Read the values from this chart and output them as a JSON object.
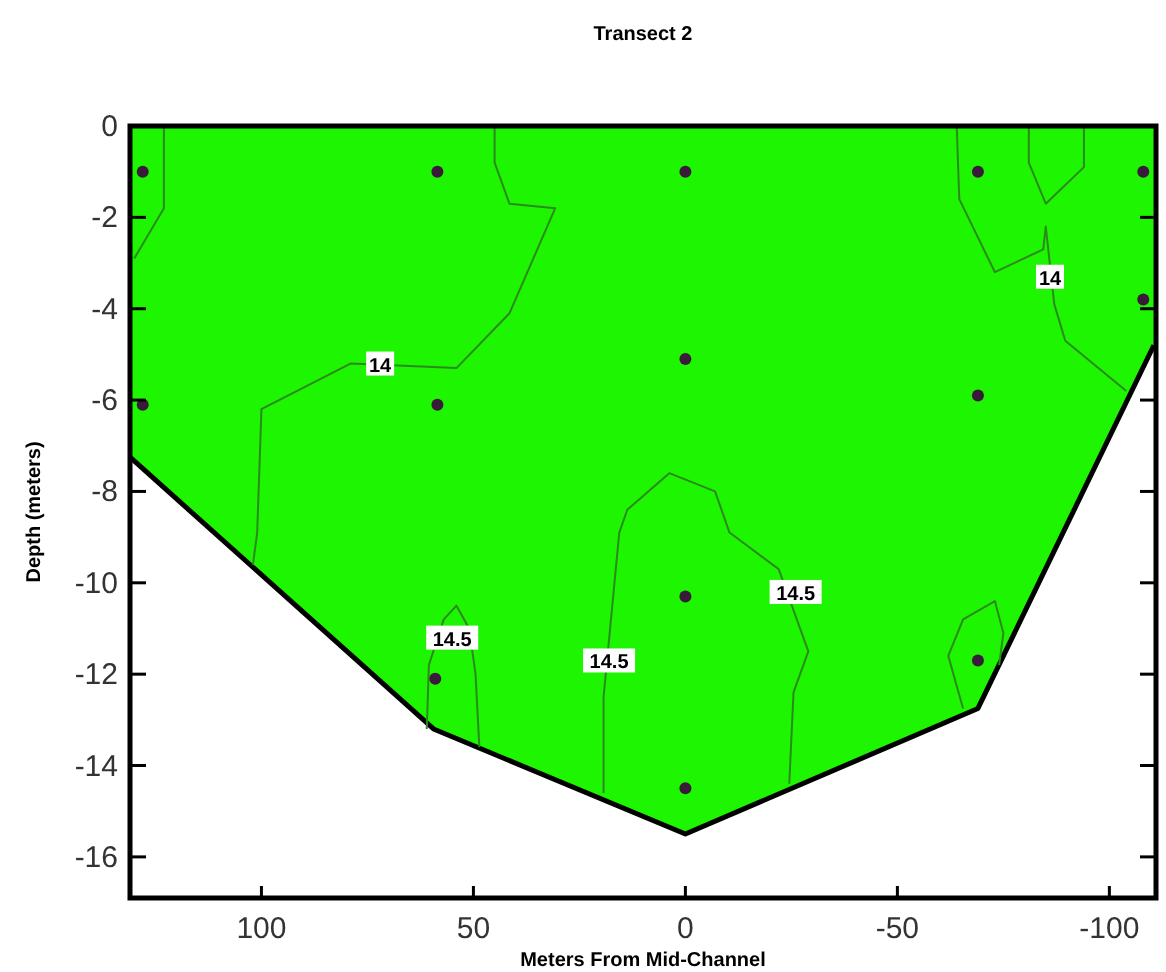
{
  "chart_data": {
    "type": "area",
    "title": "Transect 2",
    "xlabel": "Meters From Mid-Channel",
    "ylabel": "Depth (meters)",
    "xlim": [
      131,
      -111
    ],
    "ylim": [
      -16.9,
      0
    ],
    "xticks": [
      100,
      50,
      0,
      -50,
      -100
    ],
    "yticks": [
      0,
      -2,
      -4,
      -6,
      -8,
      -10,
      -12,
      -14,
      -16
    ],
    "grid": false,
    "series": [
      {
        "color": "#1ef500",
        "x": [
          131,
          59.4,
          0,
          -69,
          -110.5
        ],
        "values": [
          -7.25,
          -13.2,
          -15.5,
          -12.75,
          -4.8
        ]
      },
      {
        "type": "line",
        "color": "#2b8a1e",
        "x": [
          123,
          123,
          130
        ],
        "values": [
          0,
          -1.8,
          -2.9
        ]
      },
      {
        "type": "line",
        "color": "#2b8a1e",
        "x": [
          45,
          45,
          41.5,
          30.7,
          41.5,
          54,
          79,
          100,
          101,
          102
        ],
        "values": [
          0,
          -0.8,
          -1.7,
          -1.8,
          -4.1,
          -5.3,
          -5.2,
          -6.2,
          -8.9,
          -9.6
        ]
      },
      {
        "type": "line",
        "color": "#2b8a1e",
        "x": [
          61,
          60.5,
          57,
          54,
          51,
          49.5,
          48.6
        ],
        "values": [
          -13.2,
          -11.8,
          -10.8,
          -10.5,
          -11,
          -12,
          -13.6
        ]
      },
      {
        "type": "line",
        "color": "#2b8a1e",
        "x": [
          19.3,
          19.3,
          15.6,
          13.7,
          3.8,
          -7,
          -10.4,
          -22,
          -29,
          -25.5,
          -24.5
        ],
        "values": [
          -14.6,
          -12.5,
          -8.9,
          -8.4,
          -7.6,
          -8,
          -8.9,
          -9.7,
          -11.5,
          -12.4,
          -14.4
        ]
      },
      {
        "type": "line",
        "color": "#2b8a1e",
        "x": [
          -65.5,
          -62,
          -65.5,
          -73,
          -75,
          -74
        ],
        "values": [
          -12.75,
          -11.6,
          -10.8,
          -10.4,
          -11.1,
          -11.8
        ]
      },
      {
        "type": "line",
        "color": "#2b8a1e",
        "x": [
          -64,
          -64.6,
          -73,
          -84.4,
          -85,
          -87,
          -89.6,
          -104
        ],
        "values": [
          0,
          -1.6,
          -3.2,
          -2.7,
          -2.2,
          -3.9,
          -4.7,
          -5.8
        ]
      },
      {
        "type": "line",
        "color": "#2b8a1e",
        "x": [
          -81,
          -81,
          -85,
          -94,
          -94
        ],
        "values": [
          0,
          -0.8,
          -1.7,
          -0.9,
          0
        ]
      },
      {
        "type": "scatter",
        "color": "#3a1a3a",
        "x": [
          128,
          128,
          58.5,
          58.5,
          59,
          0,
          0,
          0,
          0,
          -69,
          -69,
          -69,
          -108,
          -108
        ],
        "values": [
          -1,
          -6.1,
          -1,
          -6.1,
          -12.1,
          -1,
          -5.1,
          -10.3,
          -14.5,
          -1,
          -5.9,
          -11.7,
          -1,
          -3.8
        ]
      }
    ],
    "annotations": [
      {
        "text": "14",
        "x": 72,
        "y": -5.2
      },
      {
        "text": "14",
        "x": -86,
        "y": -3.3
      },
      {
        "text": "14.5",
        "x": 55,
        "y": -11.2
      },
      {
        "text": "14.5",
        "x": 18,
        "y": -11.7
      },
      {
        "text": "14.5",
        "x": -26,
        "y": -10.2
      }
    ]
  }
}
